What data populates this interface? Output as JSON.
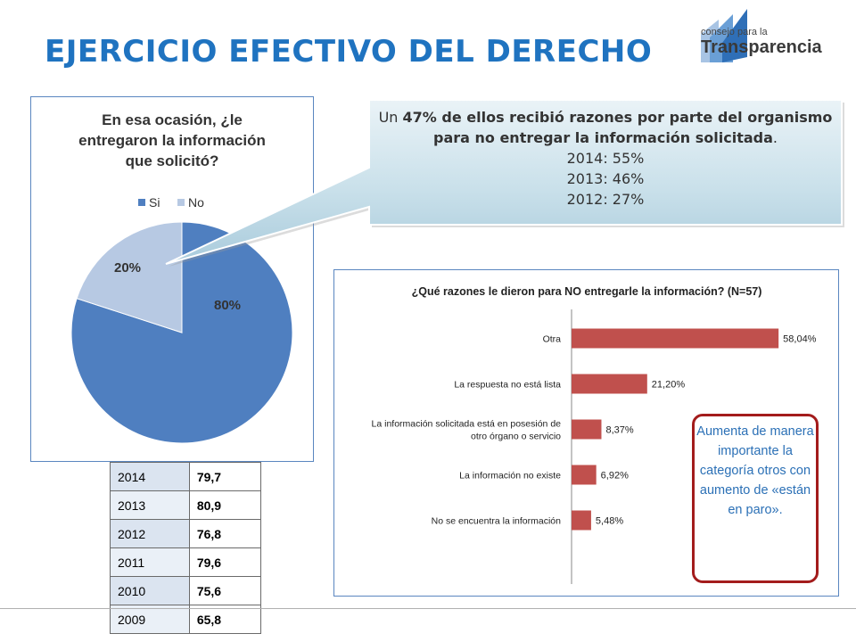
{
  "page": {
    "title": "EJERCICIO EFECTIVO DEL DERECHO",
    "logo": {
      "line1": "consejo para la",
      "line2": "Transparencia"
    }
  },
  "colors": {
    "title": "#1f73c0",
    "pie_si": "#4f7fc0",
    "pie_no": "#b7c9e3",
    "bar": "#c0504d",
    "note_border": "#a31c1c",
    "note_text": "#2b70b6"
  },
  "callout": {
    "prefix": "Un ",
    "bold": "47% de ellos recibió razones por parte del organismo para no entregar la información solicitada",
    "suffix": ".",
    "lines": [
      "2014: 55%",
      "2013: 46%",
      "2012: 27%"
    ]
  },
  "year_table": {
    "rows": [
      {
        "year": "2014",
        "value": "79,7"
      },
      {
        "year": "2013",
        "value": "80,9"
      },
      {
        "year": "2012",
        "value": "76,8"
      },
      {
        "year": "2011",
        "value": "79,6"
      },
      {
        "year": "2010",
        "value": "75,6"
      },
      {
        "year": "2009",
        "value": "65,8"
      }
    ]
  },
  "note": "Aumenta de manera importante la categoría otros con aumento de «están en paro».",
  "chart_data": [
    {
      "type": "pie",
      "title": "En esa ocasión, ¿le entregaron la información que solicitó?",
      "title_lines": [
        "En esa ocasión, ¿le",
        "entregaron la información",
        "que solicitó?"
      ],
      "legend_position": "top",
      "series": [
        {
          "name": "Si",
          "value": 80,
          "label": "80%"
        },
        {
          "name": "No",
          "value": 20,
          "label": "20%"
        }
      ]
    },
    {
      "type": "bar",
      "orientation": "horizontal",
      "title": "¿Qué razones le dieron para NO entregarle la información? (N=57)",
      "categories": [
        [
          "Otra"
        ],
        [
          "La respuesta no está lista"
        ],
        [
          "La información solicitada está en posesión de",
          "otro órgano o servicio"
        ],
        [
          "La información no existe"
        ],
        [
          "No se encuentra la información"
        ]
      ],
      "values": [
        58.04,
        21.2,
        8.37,
        6.92,
        5.48
      ],
      "labels": [
        "58,04%",
        "21,20%",
        "8,37%",
        "6,92%",
        "5,48%"
      ],
      "xlim": [
        0,
        60
      ],
      "grid": false
    }
  ]
}
